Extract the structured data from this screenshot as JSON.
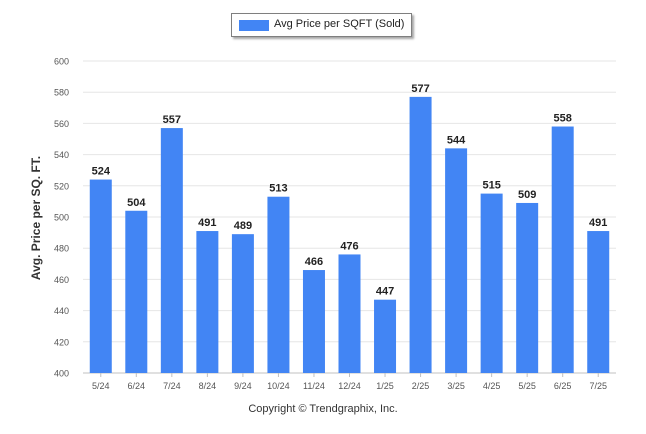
{
  "legend": {
    "label": "Avg Price per SQFT (Sold)"
  },
  "footer": {
    "credit": "Copyright © Trendgraphix, Inc."
  },
  "colors": {
    "bar": "#4285f4",
    "grid": "#e6e6e6",
    "axis": "#c0c0c0"
  },
  "chart_data": {
    "type": "bar",
    "title": "",
    "xlabel": "",
    "ylabel": "Avg. Price per SQ. FT.",
    "categories": [
      "5/24",
      "6/24",
      "7/24",
      "8/24",
      "9/24",
      "10/24",
      "11/24",
      "12/24",
      "1/25",
      "2/25",
      "3/25",
      "4/25",
      "5/25",
      "6/25",
      "7/25"
    ],
    "series": [
      {
        "name": "Avg Price per SQFT (Sold)",
        "values": [
          524,
          504,
          557,
          491,
          489,
          513,
          466,
          476,
          447,
          577,
          544,
          515,
          509,
          558,
          491
        ]
      }
    ],
    "ylim": [
      400,
      600
    ],
    "yticks": [
      400,
      420,
      440,
      460,
      480,
      500,
      520,
      540,
      560,
      580,
      600
    ],
    "grid": true,
    "legend_position": "top-center",
    "data_labels": true
  }
}
